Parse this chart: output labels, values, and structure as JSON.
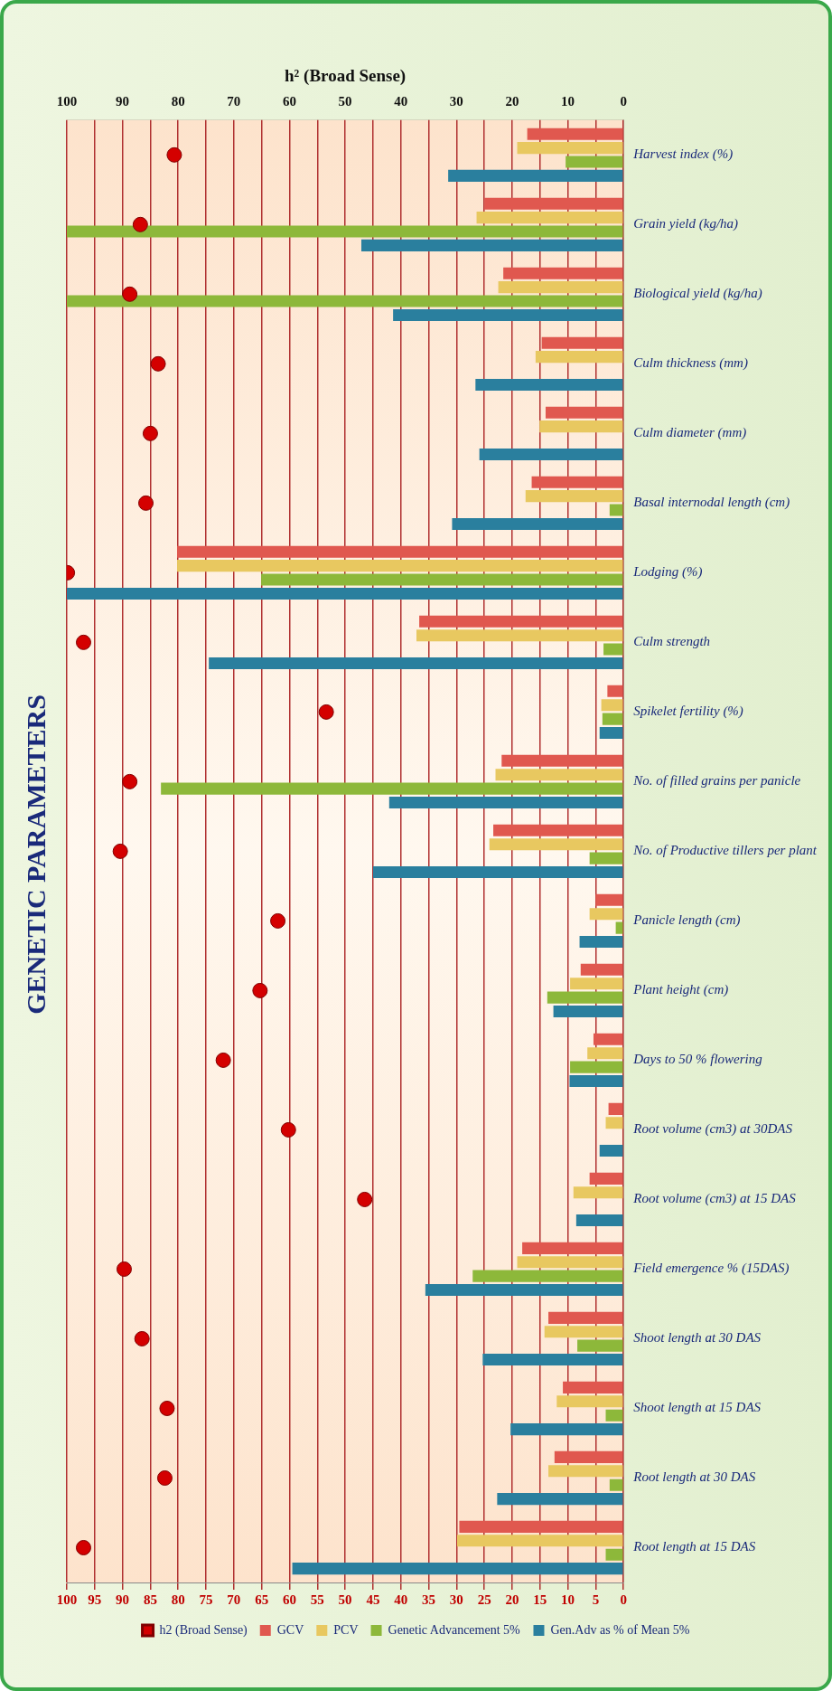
{
  "chart_data": {
    "type": "bar",
    "orientation": "horizontal",
    "title": "GENETIC PARAMETERS",
    "x2label": "h² (Broad Sense)",
    "categories": [
      "Harvest index (%)",
      "Grain yield (kg/ha)",
      "Biological yield (kg/ha)",
      "Culm thickness (mm)",
      "Culm diameter (mm)",
      "Basal internodal length (cm)",
      "Lodging (%)",
      "Culm strength",
      "Spikelet fertility (%)",
      "No. of filled grains per panicle",
      "No. of Productive tillers per plant",
      "Panicle length (cm)",
      "Plant height (cm)",
      "Days to 50 % flowering",
      "Root volume (cm3) at 30DAS",
      "Root volume (cm3) at 15 DAS",
      "Field emergence % (15DAS)",
      "Shoot length at 30 DAS",
      "Shoot length at 15 DAS",
      "Root length at 30 DAS",
      "Root length at 15 DAS"
    ],
    "series": [
      {
        "name": "GCV",
        "color": "#e0584f",
        "values": [
          17.3,
          25.0,
          21.6,
          14.7,
          14.0,
          16.5,
          80.2,
          36.7,
          2.9,
          21.9,
          23.4,
          5.0,
          7.7,
          5.4,
          2.7,
          6.1,
          18.2,
          13.5,
          10.9,
          12.4,
          29.5
        ]
      },
      {
        "name": "PCV",
        "color": "#e8c860",
        "values": [
          19.1,
          26.4,
          22.5,
          15.8,
          15.1,
          17.6,
          80.2,
          37.2,
          4.0,
          23.0,
          24.1,
          6.1,
          9.6,
          6.5,
          3.2,
          9.0,
          19.1,
          14.2,
          12.0,
          13.5,
          29.9
        ]
      },
      {
        "name": "Genetic Advancement 5%",
        "color": "#8db83a",
        "values": [
          10.4,
          100,
          100,
          null,
          null,
          2.5,
          65.1,
          3.6,
          3.8,
          83.1,
          6.1,
          1.4,
          13.7,
          9.6,
          null,
          null,
          27.1,
          8.3,
          3.2,
          2.5,
          3.2
        ]
      },
      {
        "name": "Gen.Adv as % of Mean 5%",
        "color": "#2a7f9e",
        "values": [
          31.5,
          47.1,
          41.4,
          26.6,
          25.9,
          30.8,
          100,
          74.5,
          4.3,
          42.1,
          45.0,
          7.9,
          12.6,
          9.7,
          4.3,
          8.5,
          35.6,
          25.3,
          20.3,
          22.7,
          59.5
        ]
      },
      {
        "name": "h2 (Broad Sense)",
        "type": "scatter",
        "axis": "x2",
        "color": "#d40000",
        "values": [
          80.7,
          86.8,
          88.7,
          83.6,
          85.0,
          85.8,
          99.9,
          97.0,
          53.4,
          88.7,
          90.4,
          62.1,
          65.3,
          71.9,
          60.2,
          46.5,
          89.7,
          86.5,
          82.0,
          82.4,
          97.0
        ]
      }
    ],
    "xlim": [
      100,
      0
    ],
    "xticks": [
      0,
      5,
      10,
      15,
      20,
      25,
      30,
      35,
      40,
      45,
      50,
      55,
      60,
      65,
      70,
      75,
      80,
      85,
      90,
      95,
      100
    ],
    "x2lim": [
      100,
      0
    ],
    "x2ticks": [
      0,
      10,
      20,
      30,
      40,
      50,
      60,
      70,
      80,
      90,
      100
    ],
    "grid": "x",
    "legend": "bottom",
    "marker": "circle"
  }
}
